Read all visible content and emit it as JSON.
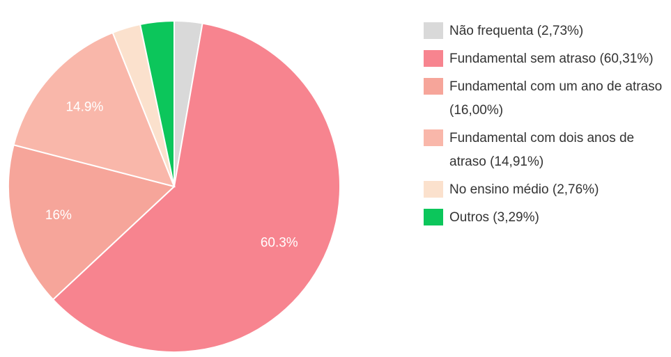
{
  "chart_data": {
    "type": "pie",
    "categories": [
      "Não frequenta (2,73%)",
      "Fundamental sem atraso (60,31%)",
      "Fundamental com um ano de atraso (16,00%)",
      "Fundamental com dois anos de atraso (14,91%)",
      "No ensino médio (2,76%)",
      "Outros (3,29%)"
    ],
    "values": [
      2.73,
      60.31,
      16.0,
      14.91,
      2.76,
      3.29
    ],
    "value_labels": [
      null,
      "60.3%",
      "16%",
      "14.9%",
      null,
      null
    ],
    "colors": [
      "#d9d9d9",
      "#f7848f",
      "#f6a59a",
      "#f9b7aa",
      "#fbe1cd",
      "#0cc65b"
    ],
    "legend": "right"
  }
}
